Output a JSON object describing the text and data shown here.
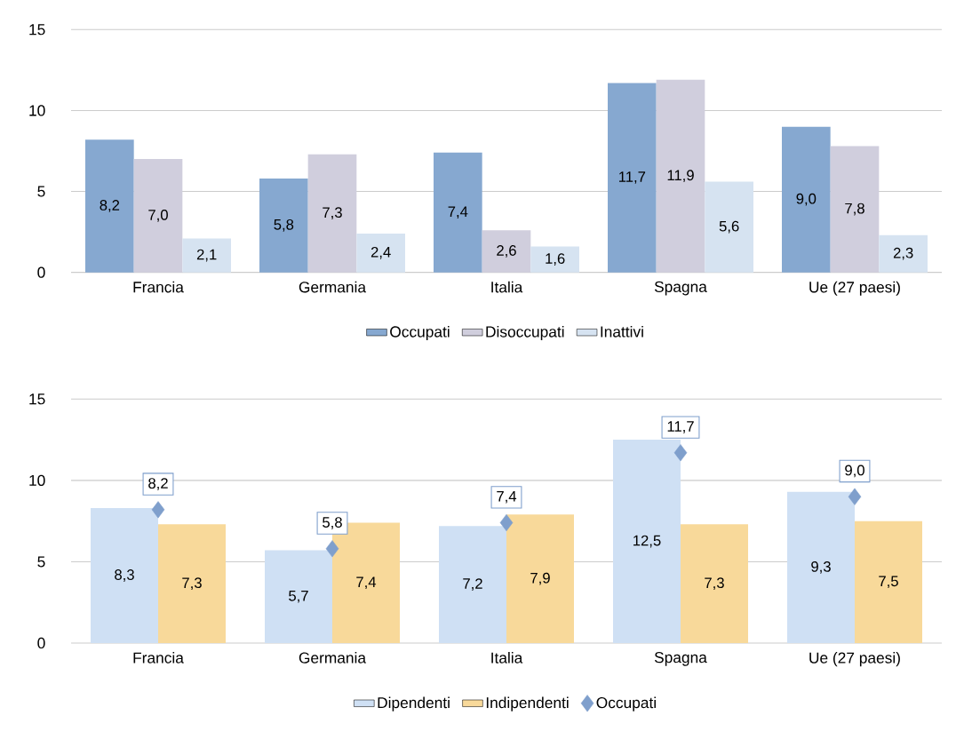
{
  "chart_data": [
    {
      "type": "bar",
      "categories": [
        "Francia",
        "Germania",
        "Italia",
        "Spagna",
        "Ue (27 paesi)"
      ],
      "ylim": [
        0,
        15
      ],
      "yticks": [
        0,
        5,
        10,
        15
      ],
      "grid": "y",
      "legend": "bottom",
      "series": [
        {
          "name": "Occupati",
          "color": "#86a8d0",
          "values": [
            8.2,
            5.8,
            7.4,
            11.7,
            9.0
          ],
          "value_labels": [
            "8,2",
            "5,8",
            "7,4",
            "11,7",
            "9,0"
          ]
        },
        {
          "name": "Disoccupati",
          "color": "#d0cedd",
          "values": [
            7.0,
            7.3,
            2.6,
            11.9,
            7.8
          ],
          "value_labels": [
            "7,0",
            "7,3",
            "2,6",
            "11,9",
            "7,8"
          ]
        },
        {
          "name": "Inattivi",
          "color": "#d6e3f1",
          "values": [
            2.1,
            2.4,
            1.6,
            5.6,
            2.3
          ],
          "value_labels": [
            "2,1",
            "2,4",
            "1,6",
            "5,6",
            "2,3"
          ]
        }
      ]
    },
    {
      "type": "bar",
      "categories": [
        "Francia",
        "Germania",
        "Italia",
        "Spagna",
        "Ue (27 paesi)"
      ],
      "ylim": [
        0,
        15
      ],
      "yticks": [
        0,
        5,
        10,
        15
      ],
      "grid": "y",
      "legend": "bottom",
      "series": [
        {
          "name": "Dipendenti",
          "color": "#cfe0f4",
          "values": [
            8.3,
            5.7,
            7.2,
            12.5,
            9.3
          ],
          "value_labels": [
            "8,3",
            "5,7",
            "7,2",
            "12,5",
            "9,3"
          ]
        },
        {
          "name": "Indipendenti",
          "color": "#f8d99a",
          "values": [
            7.3,
            7.4,
            7.9,
            7.3,
            7.5
          ],
          "value_labels": [
            "7,3",
            "7,4",
            "7,9",
            "7,3",
            "7,5"
          ]
        },
        {
          "name": "Occupati",
          "type": "scatter",
          "marker": "diamond",
          "color": "#7f9fcc",
          "x": [
            "Francia",
            "Germania",
            "Italia",
            "Spagna",
            "Ue (27 paesi)"
          ],
          "values": [
            8.2,
            5.8,
            7.4,
            11.7,
            9.0
          ],
          "value_labels": [
            "8,2",
            "5,8",
            "7,4",
            "11,7",
            "9,0"
          ]
        }
      ]
    }
  ]
}
